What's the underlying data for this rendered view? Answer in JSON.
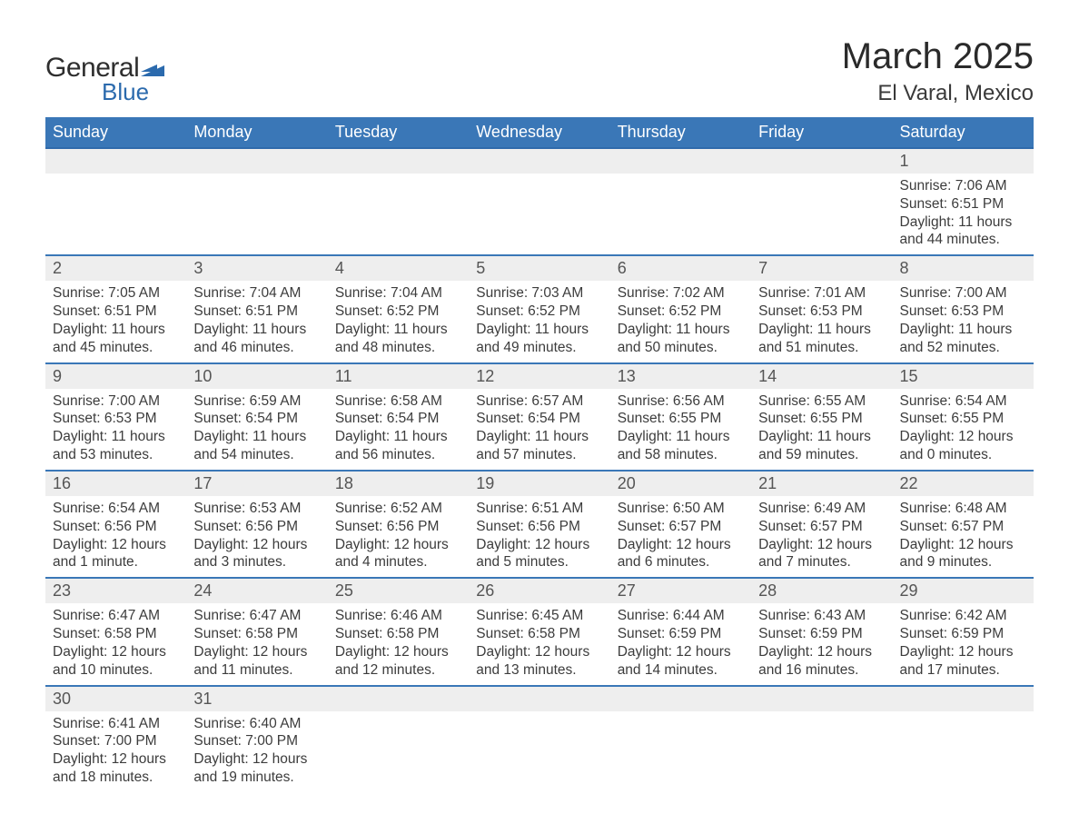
{
  "logo": {
    "text1": "General",
    "text2": "Blue",
    "flag_color": "#2b6aad"
  },
  "header": {
    "title": "March 2025",
    "location": "El Varal, Mexico"
  },
  "colors": {
    "header_bg": "#3a77b7",
    "header_text": "#ffffff",
    "row_divider": "#3a77b7",
    "daynum_bg": "#eeeeee",
    "text": "#3a3a3a"
  },
  "weekdays": [
    "Sunday",
    "Monday",
    "Tuesday",
    "Wednesday",
    "Thursday",
    "Friday",
    "Saturday"
  ],
  "weeks": [
    [
      null,
      null,
      null,
      null,
      null,
      null,
      {
        "d": "1",
        "sr": "Sunrise: 7:06 AM",
        "ss": "Sunset: 6:51 PM",
        "dl": "Daylight: 11 hours and 44 minutes."
      }
    ],
    [
      {
        "d": "2",
        "sr": "Sunrise: 7:05 AM",
        "ss": "Sunset: 6:51 PM",
        "dl": "Daylight: 11 hours and 45 minutes."
      },
      {
        "d": "3",
        "sr": "Sunrise: 7:04 AM",
        "ss": "Sunset: 6:51 PM",
        "dl": "Daylight: 11 hours and 46 minutes."
      },
      {
        "d": "4",
        "sr": "Sunrise: 7:04 AM",
        "ss": "Sunset: 6:52 PM",
        "dl": "Daylight: 11 hours and 48 minutes."
      },
      {
        "d": "5",
        "sr": "Sunrise: 7:03 AM",
        "ss": "Sunset: 6:52 PM",
        "dl": "Daylight: 11 hours and 49 minutes."
      },
      {
        "d": "6",
        "sr": "Sunrise: 7:02 AM",
        "ss": "Sunset: 6:52 PM",
        "dl": "Daylight: 11 hours and 50 minutes."
      },
      {
        "d": "7",
        "sr": "Sunrise: 7:01 AM",
        "ss": "Sunset: 6:53 PM",
        "dl": "Daylight: 11 hours and 51 minutes."
      },
      {
        "d": "8",
        "sr": "Sunrise: 7:00 AM",
        "ss": "Sunset: 6:53 PM",
        "dl": "Daylight: 11 hours and 52 minutes."
      }
    ],
    [
      {
        "d": "9",
        "sr": "Sunrise: 7:00 AM",
        "ss": "Sunset: 6:53 PM",
        "dl": "Daylight: 11 hours and 53 minutes."
      },
      {
        "d": "10",
        "sr": "Sunrise: 6:59 AM",
        "ss": "Sunset: 6:54 PM",
        "dl": "Daylight: 11 hours and 54 minutes."
      },
      {
        "d": "11",
        "sr": "Sunrise: 6:58 AM",
        "ss": "Sunset: 6:54 PM",
        "dl": "Daylight: 11 hours and 56 minutes."
      },
      {
        "d": "12",
        "sr": "Sunrise: 6:57 AM",
        "ss": "Sunset: 6:54 PM",
        "dl": "Daylight: 11 hours and 57 minutes."
      },
      {
        "d": "13",
        "sr": "Sunrise: 6:56 AM",
        "ss": "Sunset: 6:55 PM",
        "dl": "Daylight: 11 hours and 58 minutes."
      },
      {
        "d": "14",
        "sr": "Sunrise: 6:55 AM",
        "ss": "Sunset: 6:55 PM",
        "dl": "Daylight: 11 hours and 59 minutes."
      },
      {
        "d": "15",
        "sr": "Sunrise: 6:54 AM",
        "ss": "Sunset: 6:55 PM",
        "dl": "Daylight: 12 hours and 0 minutes."
      }
    ],
    [
      {
        "d": "16",
        "sr": "Sunrise: 6:54 AM",
        "ss": "Sunset: 6:56 PM",
        "dl": "Daylight: 12 hours and 1 minute."
      },
      {
        "d": "17",
        "sr": "Sunrise: 6:53 AM",
        "ss": "Sunset: 6:56 PM",
        "dl": "Daylight: 12 hours and 3 minutes."
      },
      {
        "d": "18",
        "sr": "Sunrise: 6:52 AM",
        "ss": "Sunset: 6:56 PM",
        "dl": "Daylight: 12 hours and 4 minutes."
      },
      {
        "d": "19",
        "sr": "Sunrise: 6:51 AM",
        "ss": "Sunset: 6:56 PM",
        "dl": "Daylight: 12 hours and 5 minutes."
      },
      {
        "d": "20",
        "sr": "Sunrise: 6:50 AM",
        "ss": "Sunset: 6:57 PM",
        "dl": "Daylight: 12 hours and 6 minutes."
      },
      {
        "d": "21",
        "sr": "Sunrise: 6:49 AM",
        "ss": "Sunset: 6:57 PM",
        "dl": "Daylight: 12 hours and 7 minutes."
      },
      {
        "d": "22",
        "sr": "Sunrise: 6:48 AM",
        "ss": "Sunset: 6:57 PM",
        "dl": "Daylight: 12 hours and 9 minutes."
      }
    ],
    [
      {
        "d": "23",
        "sr": "Sunrise: 6:47 AM",
        "ss": "Sunset: 6:58 PM",
        "dl": "Daylight: 12 hours and 10 minutes."
      },
      {
        "d": "24",
        "sr": "Sunrise: 6:47 AM",
        "ss": "Sunset: 6:58 PM",
        "dl": "Daylight: 12 hours and 11 minutes."
      },
      {
        "d": "25",
        "sr": "Sunrise: 6:46 AM",
        "ss": "Sunset: 6:58 PM",
        "dl": "Daylight: 12 hours and 12 minutes."
      },
      {
        "d": "26",
        "sr": "Sunrise: 6:45 AM",
        "ss": "Sunset: 6:58 PM",
        "dl": "Daylight: 12 hours and 13 minutes."
      },
      {
        "d": "27",
        "sr": "Sunrise: 6:44 AM",
        "ss": "Sunset: 6:59 PM",
        "dl": "Daylight: 12 hours and 14 minutes."
      },
      {
        "d": "28",
        "sr": "Sunrise: 6:43 AM",
        "ss": "Sunset: 6:59 PM",
        "dl": "Daylight: 12 hours and 16 minutes."
      },
      {
        "d": "29",
        "sr": "Sunrise: 6:42 AM",
        "ss": "Sunset: 6:59 PM",
        "dl": "Daylight: 12 hours and 17 minutes."
      }
    ],
    [
      {
        "d": "30",
        "sr": "Sunrise: 6:41 AM",
        "ss": "Sunset: 7:00 PM",
        "dl": "Daylight: 12 hours and 18 minutes."
      },
      {
        "d": "31",
        "sr": "Sunrise: 6:40 AM",
        "ss": "Sunset: 7:00 PM",
        "dl": "Daylight: 12 hours and 19 minutes."
      },
      null,
      null,
      null,
      null,
      null
    ]
  ]
}
